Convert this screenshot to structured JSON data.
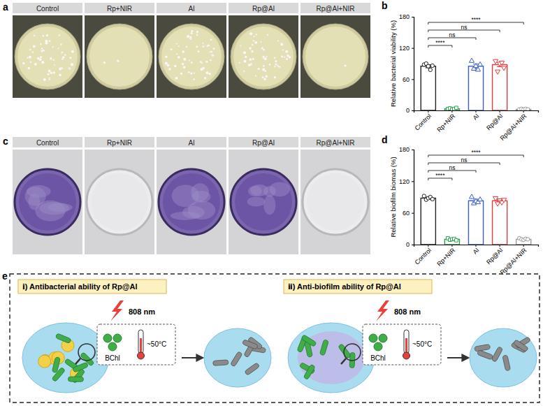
{
  "photo_panels": [
    {
      "label": "a",
      "groups": [
        "Control",
        "Rp+NIR",
        "Al",
        "Rp@Al",
        "Rp@Al+NIR"
      ]
    },
    {
      "label": "c",
      "groups": [
        "Control",
        "Rp+NIR",
        "Al",
        "Rp@Al",
        "Rp@Al+NIR"
      ]
    }
  ],
  "chart_data": [
    {
      "type": "bar",
      "title": "b",
      "ylabel": "Relative bacterial viability (%)",
      "categories": [
        "Control",
        "Rp+NIR",
        "Al",
        "Rp@Al",
        "Rp@Al+NIR"
      ],
      "values": [
        85,
        3,
        85,
        88,
        2
      ],
      "errors": [
        3,
        0.6,
        4,
        4,
        0.3
      ],
      "points": [
        [
          88,
          90,
          85,
          78,
          86
        ],
        [
          3,
          4,
          2,
          3,
          5
        ],
        [
          95,
          80,
          85,
          78,
          88
        ],
        [
          95,
          75,
          90,
          92,
          82
        ],
        [
          2,
          3,
          2,
          3,
          2
        ]
      ],
      "colors": [
        "#222222",
        "#2e9e4f",
        "#3a5fcd",
        "#e03c3c",
        "#9a9a9a"
      ],
      "ylim": [
        0,
        180
      ],
      "yticks": [
        0,
        60,
        120,
        180
      ],
      "annotations": [
        {
          "from": 0,
          "to": 1,
          "text": "****"
        },
        {
          "from": 0,
          "to": 2,
          "text": "ns"
        },
        {
          "from": 0,
          "to": 3,
          "text": "ns"
        },
        {
          "from": 0,
          "to": 4,
          "text": "****"
        }
      ]
    },
    {
      "type": "bar",
      "title": "d",
      "ylabel": "Relative biofilm biomas (%)",
      "categories": [
        "Control",
        "Rp+NIR",
        "Al",
        "Rp@Al",
        "Rp@Al+NIR"
      ],
      "values": [
        88,
        10,
        83,
        83,
        10
      ],
      "errors": [
        2,
        1,
        3,
        2,
        0.8
      ],
      "points": [
        [
          92,
          85,
          88,
          90,
          86
        ],
        [
          12,
          9,
          10,
          11,
          8
        ],
        [
          90,
          78,
          82,
          80,
          85
        ],
        [
          88,
          78,
          84,
          80,
          85
        ],
        [
          12,
          10,
          9,
          11,
          10
        ]
      ],
      "colors": [
        "#222222",
        "#2e9e4f",
        "#3a5fcd",
        "#e03c3c",
        "#9a9a9a"
      ],
      "ylim": [
        0,
        180
      ],
      "yticks": [
        0,
        60,
        120,
        180
      ],
      "annotations": [
        {
          "from": 0,
          "to": 1,
          "text": "****"
        },
        {
          "from": 0,
          "to": 2,
          "text": "ns"
        },
        {
          "from": 0,
          "to": 3,
          "text": "ns"
        },
        {
          "from": 0,
          "to": 4,
          "text": "****"
        }
      ]
    }
  ],
  "schematic": {
    "label": "e",
    "panels": [
      {
        "title": "ⅰ) Antibacterial ability of Rp@Al",
        "laser": "808 nm",
        "agent": "BChl",
        "temperature": "~50°C"
      },
      {
        "title": "ⅱ) Anti-biofilm ability of Rp@Al",
        "laser": "808 nm",
        "agent": "BChl",
        "temperature": "~50°C"
      }
    ]
  }
}
